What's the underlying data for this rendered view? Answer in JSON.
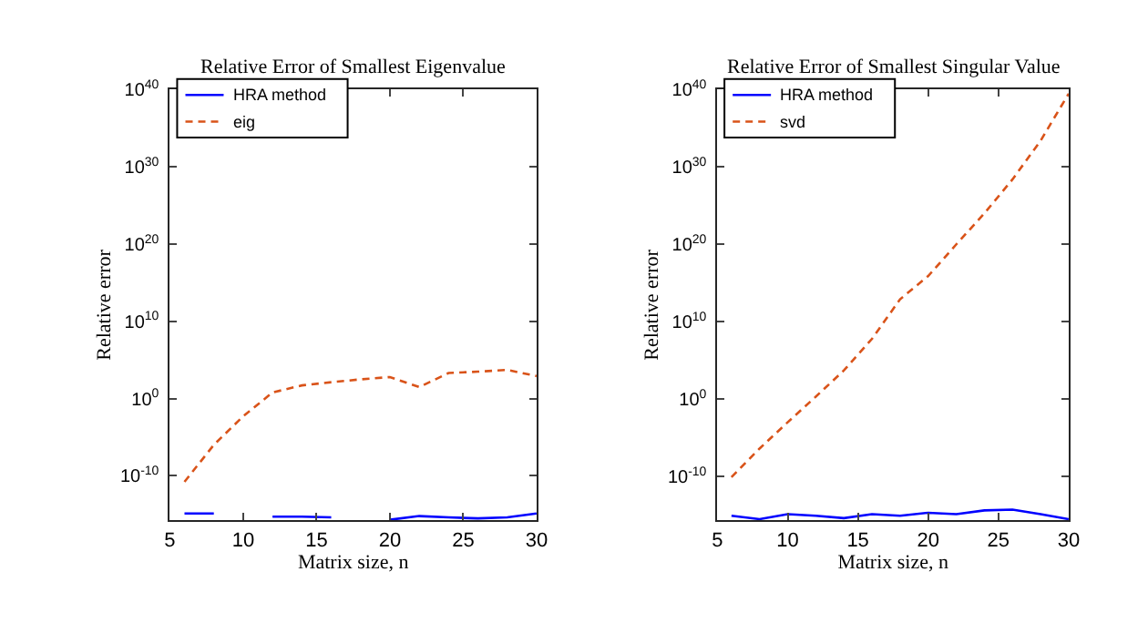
{
  "chart_data": [
    {
      "type": "line",
      "title": "Relative Error of Smallest Eigenvalue",
      "xlabel": "Matrix size, n",
      "ylabel": "Relative error",
      "log": "y",
      "legend": "top left",
      "marker": "none",
      "x": [
        6,
        8,
        10,
        12,
        14,
        16,
        18,
        20,
        22,
        24,
        26,
        28,
        30
      ],
      "xlim": [
        5,
        30
      ],
      "xticks": [
        5,
        10,
        15,
        20,
        25,
        30
      ],
      "ylim": [
        1.6e-16,
        1e+40
      ],
      "yticks": [
        {
          "value": 1e-10,
          "label": "10$^{-10}$"
        },
        {
          "value": 1,
          "label": "10$^{0}$"
        },
        {
          "value": 10000000000.0,
          "label": "10$^{10}$"
        },
        {
          "value": 1e+20,
          "label": "10$^{20}$"
        },
        {
          "value": 1e+30,
          "label": "10$^{30}$"
        },
        {
          "value": 1e+40,
          "label": "10$^{40}$"
        }
      ],
      "series": [
        {
          "name": "HRA method",
          "color": "#0000ff",
          "line_style": "solid",
          "values": [
            1.3e-15,
            1.3e-15,
            null,
            5e-16,
            5e-16,
            4e-16,
            null,
            2e-16,
            6e-16,
            4e-16,
            3e-16,
            4e-16,
            1.3e-15
          ]
        },
        {
          "name": "eig",
          "color": "#d95319",
          "line_style": "dashed",
          "values": [
            1.6e-11,
            1e-06,
            0.005,
            6,
            50,
            130,
            300,
            600,
            30,
            2000,
            3000,
            5000,
            800
          ]
        }
      ]
    },
    {
      "type": "line",
      "title": "Relative Error of Smallest Singular Value",
      "xlabel": "Matrix size, n",
      "ylabel": "Relative error",
      "log": "y",
      "legend": "top left",
      "marker": "none",
      "x": [
        6,
        8,
        10,
        12,
        14,
        16,
        18,
        20,
        22,
        24,
        26,
        28,
        30
      ],
      "xlim": [
        5,
        30
      ],
      "xticks": [
        5,
        10,
        15,
        20,
        25,
        30
      ],
      "ylim": [
        2e-16,
        1e+40
      ],
      "yticks": [
        {
          "value": 1e-10,
          "label": "10$^{-10}$"
        },
        {
          "value": 1,
          "label": "10$^{0}$"
        },
        {
          "value": 10000000000.0,
          "label": "10$^{10}$"
        },
        {
          "value": 1e+20,
          "label": "10$^{20}$"
        },
        {
          "value": 1e+30,
          "label": "10$^{30}$"
        },
        {
          "value": 1e+40,
          "label": "10$^{40}$"
        }
      ],
      "series": [
        {
          "name": "HRA method",
          "color": "#0000ff",
          "line_style": "solid",
          "values": [
            8e-16,
            3e-16,
            1.3e-15,
            8e-16,
            4e-16,
            1.3e-15,
            8e-16,
            2e-15,
            1.3e-15,
            4e-15,
            5e-15,
            1.3e-15,
            3e-16
          ]
        },
        {
          "name": "svd",
          "color": "#d95319",
          "line_style": "dashed",
          "values": [
            8e-11,
            4e-07,
            0.001,
            2,
            5000,
            60000000.0,
            8000000000000.0,
            8000000000000000.0,
            1e+20,
            1e+24,
            2.5e+28,
            2.5e+33,
            3e+39
          ]
        }
      ]
    }
  ]
}
